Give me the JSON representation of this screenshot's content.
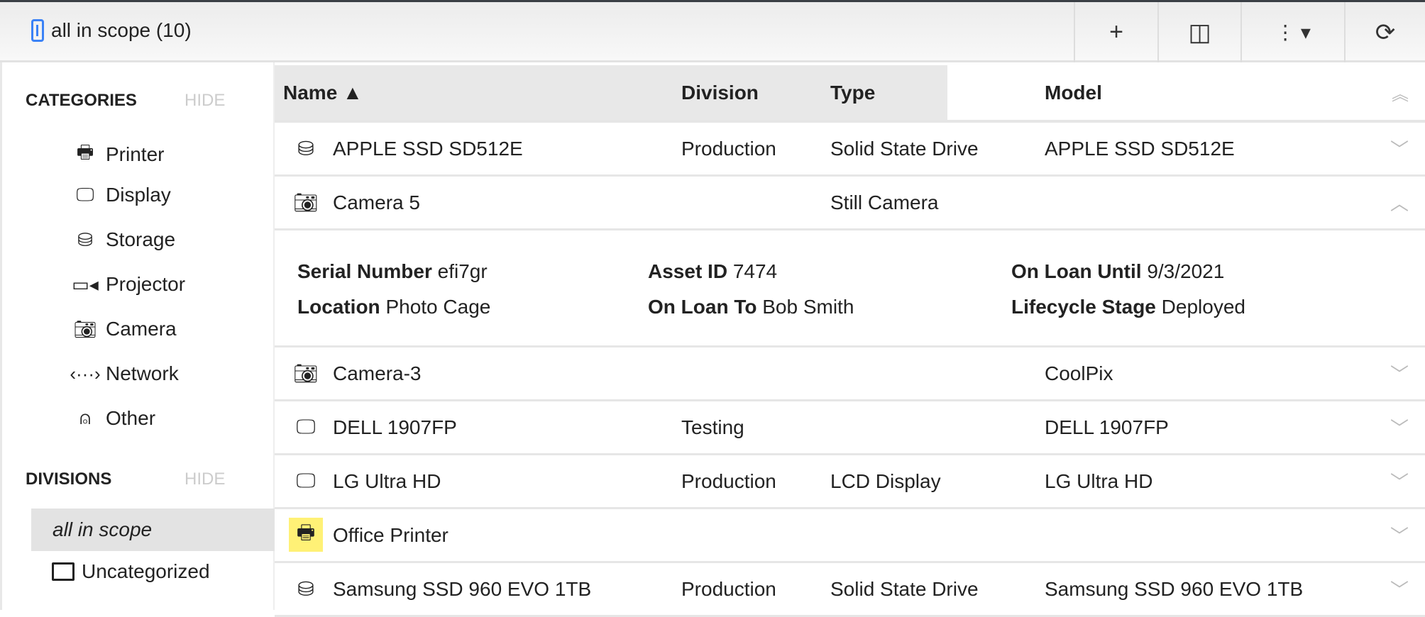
{
  "toolbar": {
    "title": "all in scope (10)",
    "buttons": [
      {
        "name": "add",
        "glyph": "+"
      },
      {
        "name": "split-view",
        "glyph": "◫"
      },
      {
        "name": "more-menu",
        "glyph": "⋮ ▾"
      },
      {
        "name": "refresh",
        "glyph": "⟳"
      }
    ]
  },
  "sidebar": {
    "categories_title": "CATEGORIES",
    "hide_label": "HIDE",
    "categories": [
      {
        "label": "Printer",
        "icon": "printer-icon",
        "glyph": "🖶"
      },
      {
        "label": "Display",
        "icon": "display-icon",
        "glyph": "🖵"
      },
      {
        "label": "Storage",
        "icon": "storage-icon",
        "glyph": "⛁"
      },
      {
        "label": "Projector",
        "icon": "projector-icon",
        "glyph": "▭◂"
      },
      {
        "label": "Camera",
        "icon": "camera-icon",
        "glyph": "📷︎"
      },
      {
        "label": "Network",
        "icon": "network-icon",
        "glyph": "‹···›"
      },
      {
        "label": "Other",
        "icon": "mouse-icon",
        "glyph": "⍝"
      }
    ],
    "divisions_title": "DIVISIONS",
    "divisions": [
      {
        "label": "all in scope",
        "selected": true
      },
      {
        "label": "Uncategorized",
        "icon": "folder-icon"
      }
    ]
  },
  "table": {
    "columns": [
      "Name ▲",
      "Division",
      "Type",
      "Model"
    ],
    "rows": [
      {
        "name": "APPLE SSD SD512E",
        "division": "Production",
        "type": "Solid State Drive",
        "model": "APPLE SSD SD512E",
        "icon": "storage-icon",
        "expanded": false
      },
      {
        "name": "Camera 5",
        "division": "",
        "type": "Still Camera",
        "model": "",
        "icon": "camera-icon",
        "expanded": true
      },
      {
        "name": "Camera-3",
        "division": "",
        "type": "",
        "model": "CoolPix",
        "icon": "camera-icon",
        "expanded": false
      },
      {
        "name": "DELL 1907FP",
        "division": "Testing",
        "type": "",
        "model": "DELL 1907FP",
        "icon": "display-icon",
        "expanded": false
      },
      {
        "name": "LG Ultra HD",
        "division": "Production",
        "type": "LCD Display",
        "model": "LG Ultra HD",
        "icon": "display-icon",
        "expanded": false
      },
      {
        "name": "Office Printer",
        "division": "",
        "type": "",
        "model": "",
        "icon": "printer-icon",
        "highlight": "#fff176",
        "expanded": false
      },
      {
        "name": "Samsung SSD 960 EVO 1TB",
        "division": "Production",
        "type": "Solid State Drive",
        "model": "Samsung SSD 960 EVO 1TB",
        "icon": "storage-icon",
        "expanded": false
      }
    ],
    "detail": {
      "serial_label": "Serial Number",
      "serial": "efi7gr",
      "asset_label": "Asset ID",
      "asset": "7474",
      "loan_until_label": "On Loan Until",
      "loan_until": "9/3/2021",
      "location_label": "Location",
      "location": "Photo Cage",
      "loan_to_label": "On Loan To",
      "loan_to": "Bob Smith",
      "stage_label": "Lifecycle Stage",
      "stage": "Deployed"
    }
  }
}
